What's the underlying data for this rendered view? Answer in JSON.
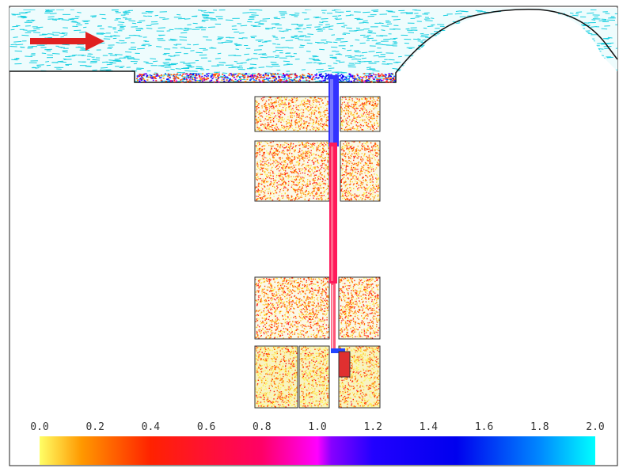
{
  "chart_data": {
    "type": "heatmap",
    "title": "",
    "xlabel": "",
    "ylabel": "",
    "colorbar": {
      "range": [
        0.0,
        2.0
      ],
      "ticks": [
        "0.0",
        "0.2",
        "0.4",
        "0.6",
        "0.8",
        "1.0",
        "1.2",
        "1.4",
        "1.6",
        "1.8",
        "2.0"
      ],
      "colors": [
        {
          "value": 0.0,
          "color": "#ffff66"
        },
        {
          "value": 0.15,
          "color": "#ff9900"
        },
        {
          "value": 0.4,
          "color": "#ff2200"
        },
        {
          "value": 0.8,
          "color": "#ff0066"
        },
        {
          "value": 1.0,
          "color": "#ff00ff"
        },
        {
          "value": 1.05,
          "color": "#8800ff"
        },
        {
          "value": 1.2,
          "color": "#2200ff"
        },
        {
          "value": 1.5,
          "color": "#0000ee"
        },
        {
          "value": 1.8,
          "color": "#0088ff"
        },
        {
          "value": 2.0,
          "color": "#00ffff"
        }
      ]
    },
    "flow_direction": "left-to-right",
    "grid": false
  },
  "colors": {
    "flow_arrow": "#e02020",
    "surface_line": "#111111",
    "velocity_vectors": "#19cfe0",
    "block_outline": "#333333"
  }
}
